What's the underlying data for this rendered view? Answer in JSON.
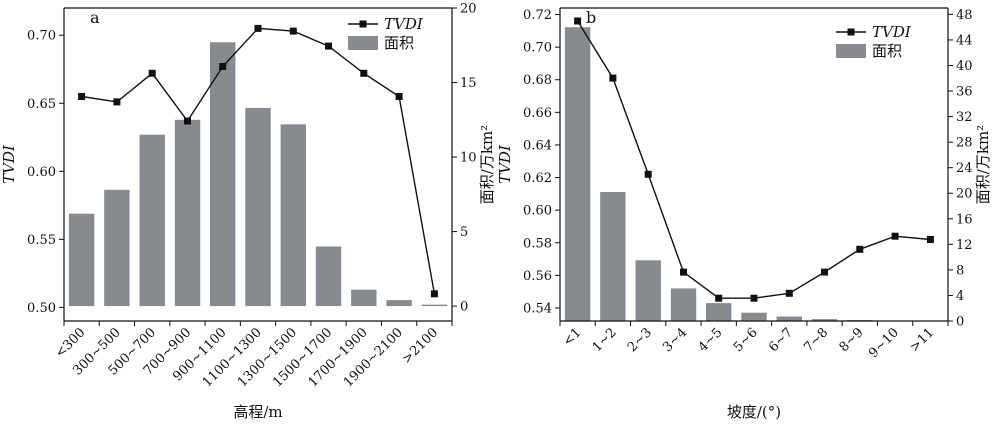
{
  "chart_data": [
    {
      "type": "bar+line",
      "panel_label": "a",
      "xlabel": "高程/m",
      "ylabel_left": "TVDI",
      "ylabel_right": "面积/万km²",
      "categories": [
        "<300",
        "300~500",
        "500~700",
        "700~900",
        "900~1100",
        "1100~1300",
        "1300~1500",
        "1500~1700",
        "1700~1900",
        "1900~2100",
        ">2100"
      ],
      "series": [
        {
          "name": "TVDI",
          "kind": "line",
          "axis": "left",
          "values": [
            0.655,
            0.651,
            0.672,
            0.637,
            0.677,
            0.705,
            0.703,
            0.692,
            0.672,
            0.655,
            0.51
          ]
        },
        {
          "name": "面积",
          "kind": "bar",
          "axis": "right",
          "values": [
            6.2,
            7.8,
            11.5,
            12.5,
            17.7,
            13.3,
            12.2,
            4.0,
            1.1,
            0.4,
            0.1
          ]
        }
      ],
      "ylim_left": [
        0.49,
        0.72
      ],
      "yticks_left": [
        "0.50",
        "0.55",
        "0.60",
        "0.65",
        "0.70"
      ],
      "ylim_right": [
        -1,
        20
      ],
      "yticks_right": [
        "0",
        "5",
        "10",
        "15",
        "20"
      ],
      "legend": {
        "placement": "top-right",
        "entries": [
          "TVDI",
          "面积"
        ]
      },
      "grid": false,
      "colors": {
        "bar": "#878a8e",
        "line": "#111111"
      }
    },
    {
      "type": "bar+line",
      "panel_label": "b",
      "xlabel": "坡度/(°)",
      "ylabel_left": "TVDI",
      "ylabel_right": "面积/万km²",
      "categories": [
        "<1",
        "1~2",
        "2~3",
        "3~4",
        "4~5",
        "5~6",
        "6~7",
        "7~8",
        "8~9",
        "9~10",
        ">11"
      ],
      "series": [
        {
          "name": "TVDI",
          "kind": "line",
          "axis": "left",
          "values": [
            0.716,
            0.681,
            0.622,
            0.562,
            0.546,
            0.546,
            0.549,
            0.562,
            0.576,
            0.584,
            0.582
          ]
        },
        {
          "name": "面积",
          "kind": "bar",
          "axis": "right",
          "values": [
            46.0,
            20.2,
            9.5,
            5.1,
            2.8,
            1.3,
            0.7,
            0.3,
            0.15,
            0.05,
            0.02
          ]
        }
      ],
      "ylim_left": [
        0.532,
        0.724
      ],
      "yticks_left": [
        "0.54",
        "0.56",
        "0.58",
        "0.60",
        "0.62",
        "0.64",
        "0.66",
        "0.68",
        "0.70",
        "0.72"
      ],
      "ylim_right": [
        0,
        49
      ],
      "yticks_right": [
        "0",
        "4",
        "8",
        "12",
        "16",
        "20",
        "24",
        "28",
        "32",
        "36",
        "40",
        "44",
        "48"
      ],
      "legend": {
        "placement": "top-right",
        "entries": [
          "TVDI",
          "面积"
        ]
      },
      "grid": false,
      "colors": {
        "bar": "#878a8e",
        "line": "#111111"
      }
    }
  ]
}
